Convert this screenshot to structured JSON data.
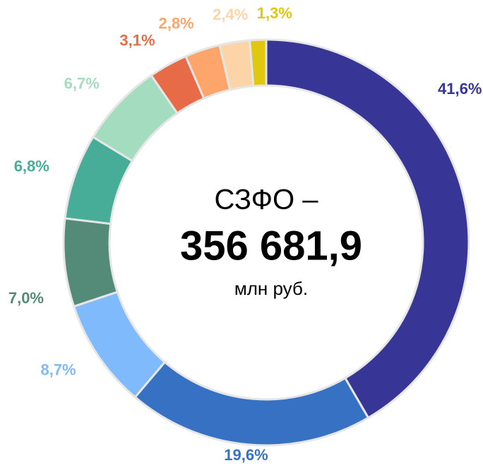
{
  "chart_data": {
    "type": "donut",
    "center_text": [
      "СЗФО –",
      "356 681,9",
      "млн руб."
    ],
    "values": [
      41.6,
      19.6,
      8.7,
      7.0,
      6.8,
      6.7,
      3.1,
      2.8,
      2.4,
      1.3
    ],
    "value_labels": [
      "41,6%",
      "19,6%",
      "8,7%",
      "7,0%",
      "6,8%",
      "6,7%",
      "3,1%",
      "2,8%",
      "2,4%",
      "1,3%"
    ],
    "colors": [
      "#373596",
      "#3671c4",
      "#7fbafc",
      "#548a78",
      "#47ad99",
      "#a3dcbf",
      "#e86b47",
      "#fda56b",
      "#fdd4a8",
      "#dfc80d"
    ]
  }
}
